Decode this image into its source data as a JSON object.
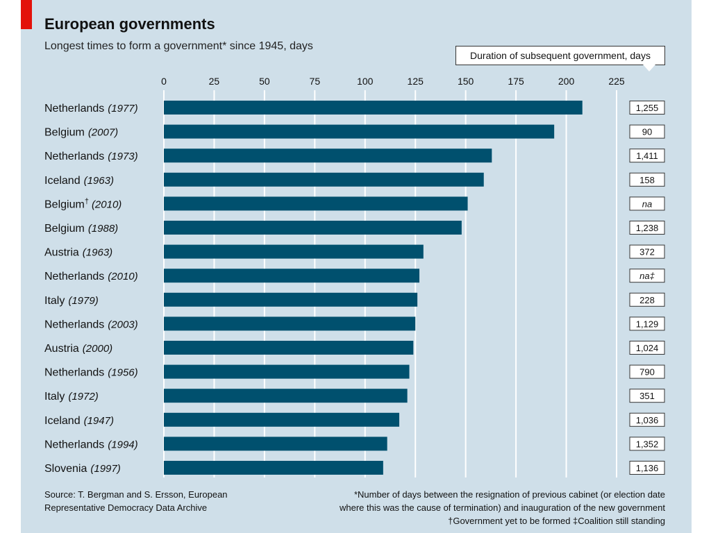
{
  "header": {
    "title": "European governments",
    "subtitle": "Longest times to form a government* since 1945, days",
    "side_column_title": "Duration of subsequent government, days"
  },
  "chart_data": {
    "type": "bar",
    "orientation": "horizontal",
    "title": "European governments",
    "subtitle": "Longest times to form a government* since 1945, days",
    "xlim": [
      0,
      225
    ],
    "xticks": [
      0,
      25,
      50,
      75,
      100,
      125,
      150,
      175,
      200,
      225
    ],
    "grid": true,
    "bar_color": "#00506e",
    "categories": [
      {
        "country": "Netherlands",
        "marker": "",
        "year": "(1977)"
      },
      {
        "country": "Belgium",
        "marker": "",
        "year": "(2007)"
      },
      {
        "country": "Netherlands",
        "marker": "",
        "year": "(1973)"
      },
      {
        "country": "Iceland",
        "marker": "",
        "year": "(1963)"
      },
      {
        "country": "Belgium",
        "marker": "†",
        "year": "(2010)"
      },
      {
        "country": "Belgium",
        "marker": "",
        "year": "(1988)"
      },
      {
        "country": "Austria",
        "marker": "",
        "year": "(1963)"
      },
      {
        "country": "Netherlands",
        "marker": "",
        "year": "(2010)"
      },
      {
        "country": "Italy",
        "marker": "",
        "year": "(1979)"
      },
      {
        "country": "Netherlands",
        "marker": "",
        "year": "(2003)"
      },
      {
        "country": "Austria",
        "marker": "",
        "year": "(2000)"
      },
      {
        "country": "Netherlands",
        "marker": "",
        "year": "(1956)"
      },
      {
        "country": "Italy",
        "marker": "",
        "year": "(1972)"
      },
      {
        "country": "Iceland",
        "marker": "",
        "year": "(1947)"
      },
      {
        "country": "Netherlands",
        "marker": "",
        "year": "(1994)"
      },
      {
        "country": "Slovenia",
        "marker": "",
        "year": "(1997)"
      }
    ],
    "values": [
      208,
      194,
      163,
      159,
      151,
      148,
      129,
      127,
      126,
      125,
      124,
      122,
      121,
      117,
      111,
      109
    ],
    "subsequent_duration": [
      "1,255",
      "90",
      "1,411",
      "158",
      "na",
      "1,238",
      "372",
      "na‡",
      "228",
      "1,129",
      "1,024",
      "790",
      "351",
      "1,036",
      "1,352",
      "1,136"
    ]
  },
  "footer": {
    "source": "Source: T. Bergman and S. Ersson, European Representative Democracy Data Archive",
    "footnote_1": "*Number of days between the resignation of previous cabinet (or election date",
    "footnote_2": "where this was the cause of termination) and inauguration of the new government",
    "footnote_3": "†Government yet to be formed   ‡Coalition still standing"
  }
}
